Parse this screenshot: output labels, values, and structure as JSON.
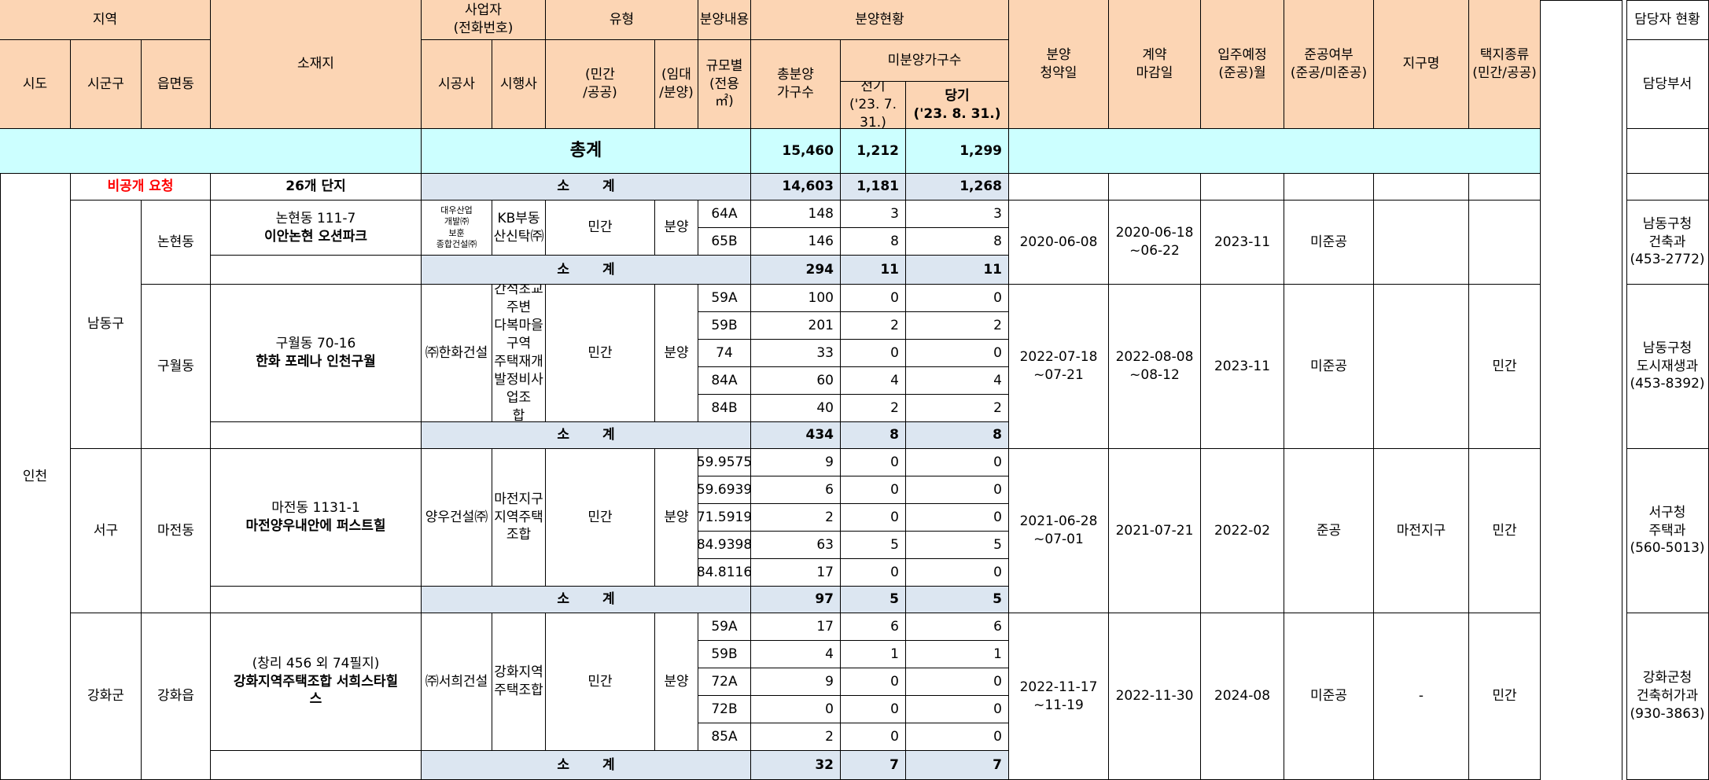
{
  "header": {
    "region": "지역",
    "sido": "시도",
    "sigungu": "시군구",
    "eupmyeondong": "읍면동",
    "location": "소재지",
    "business": "사업자\n(전화번호)",
    "constructor": "시공사",
    "developer": "시행사",
    "type": "유형",
    "type_public": "(민간\n/공공)",
    "type_lease": "(임대\n/분양)",
    "sale_content": "분양내용",
    "size": "규모별\n(전용 ㎡)",
    "sale_status": "분양현황",
    "total_units": "총분양\n가구수",
    "unsold": "미분양가구수",
    "prev": "전기\n('23. 7. 31.)",
    "curr": "당기\n('23. 8. 31.)",
    "subscription_date": "분양\n청약일",
    "contract_deadline": "계약\n마감일",
    "move_in": "입주예정\n(준공)월",
    "completion": "준공여부\n(준공/미준공)",
    "district": "지구명",
    "land_type": "택지종류\n(민간/공공)",
    "manager_status": "담당자 현황",
    "manager_dept": "담당부서"
  },
  "grand_total": {
    "label": "총계",
    "total": "15,460",
    "prev": "1,212",
    "curr": "1,299"
  },
  "incheon": {
    "sido": "인천",
    "nondisclosure": "비공개 요청",
    "complex_count": "26개 단지",
    "subtotal_label": "소 계",
    "total": "14,603",
    "prev": "1,181",
    "curr": "1,268"
  },
  "projects": [
    {
      "sigungu": "남동구",
      "dong": "논현동",
      "location": "논현동 111-7",
      "name": "이안논현 오션파크",
      "constructor": "대우산업\n개발㈜\n보훈\n종합건설㈜",
      "developer": "KB부동산신탁㈜",
      "public_private": "민간",
      "lease_sale": "분양",
      "rows": [
        {
          "size": "64A",
          "total": "148",
          "prev": "3",
          "curr": "3"
        },
        {
          "size": "65B",
          "total": "146",
          "prev": "8",
          "curr": "8"
        }
      ],
      "subtotal": {
        "label": "소 계",
        "total": "294",
        "prev": "11",
        "curr": "11"
      },
      "subscription": "2020-06-08",
      "contract": "2020-06-18\n~06-22",
      "move_in": "2023-11",
      "completion": "미준공",
      "district": "",
      "land": "",
      "manager": "남동구청\n건축과\n(453-2772)"
    },
    {
      "dong": "구월동",
      "location": "구월동 70-16",
      "name": "한화 포레나 인천구월",
      "constructor": "㈜한화건설",
      "developer": "간석초교주변\n다복마을구역\n주택재개발정비사업조\n합",
      "public_private": "민간",
      "lease_sale": "분양",
      "rows": [
        {
          "size": "59A",
          "total": "100",
          "prev": "0",
          "curr": "0"
        },
        {
          "size": "59B",
          "total": "201",
          "prev": "2",
          "curr": "2"
        },
        {
          "size": "74",
          "total": "33",
          "prev": "0",
          "curr": "0"
        },
        {
          "size": "84A",
          "total": "60",
          "prev": "4",
          "curr": "4"
        },
        {
          "size": "84B",
          "total": "40",
          "prev": "2",
          "curr": "2"
        }
      ],
      "subtotal": {
        "label": "소 계",
        "total": "434",
        "prev": "8",
        "curr": "8"
      },
      "subscription": "2022-07-18\n~07-21",
      "contract": "2022-08-08\n~08-12",
      "move_in": "2023-11",
      "completion": "미준공",
      "district": "",
      "land": "민간",
      "manager": "남동구청\n도시재생과\n(453-8392)"
    },
    {
      "sigungu": "서구",
      "dong": "마전동",
      "location": "마전동 1131-1",
      "name": "마전양우내안에 퍼스트힐",
      "constructor": "양우건설㈜",
      "developer": "마전지구지역주택조합",
      "public_private": "민간",
      "lease_sale": "분양",
      "rows": [
        {
          "size": "59.9575",
          "total": "9",
          "prev": "0",
          "curr": "0"
        },
        {
          "size": "59.6939",
          "total": "6",
          "prev": "0",
          "curr": "0"
        },
        {
          "size": "71.5919",
          "total": "2",
          "prev": "0",
          "curr": "0"
        },
        {
          "size": "84.9398",
          "total": "63",
          "prev": "5",
          "curr": "5"
        },
        {
          "size": "84.8116",
          "total": "17",
          "prev": "0",
          "curr": "0"
        }
      ],
      "subtotal": {
        "label": "소 계",
        "total": "97",
        "prev": "5",
        "curr": "5"
      },
      "subscription": "2021-06-28\n~07-01",
      "contract": "2021-07-21",
      "move_in": "2022-02",
      "completion": "준공",
      "district": "마전지구",
      "land": "민간",
      "manager": "서구청\n주택과\n(560-5013)"
    },
    {
      "sigungu": "강화군",
      "dong": "강화읍",
      "location": "(창리 456 외 74필지)",
      "name": "강화지역주택조합 서희스타힐\n스",
      "constructor": "㈜서희건설",
      "developer": "강화지역주택조합",
      "public_private": "민간",
      "lease_sale": "분양",
      "rows": [
        {
          "size": "59A",
          "total": "17",
          "prev": "6",
          "curr": "6"
        },
        {
          "size": "59B",
          "total": "4",
          "prev": "1",
          "curr": "1"
        },
        {
          "size": "72A",
          "total": "9",
          "prev": "0",
          "curr": "0"
        },
        {
          "size": "72B",
          "total": "0",
          "prev": "0",
          "curr": "0"
        },
        {
          "size": "85A",
          "total": "2",
          "prev": "0",
          "curr": "0"
        }
      ],
      "subtotal": {
        "label": "소 계",
        "total": "32",
        "prev": "7",
        "curr": "7"
      },
      "subscription": "2022-11-17\n~11-19",
      "contract": "2022-11-30",
      "move_in": "2024-08",
      "completion": "미준공",
      "district": "-",
      "land": "민간",
      "manager": "강화군청\n건축허가과\n(930-3863)"
    }
  ]
}
